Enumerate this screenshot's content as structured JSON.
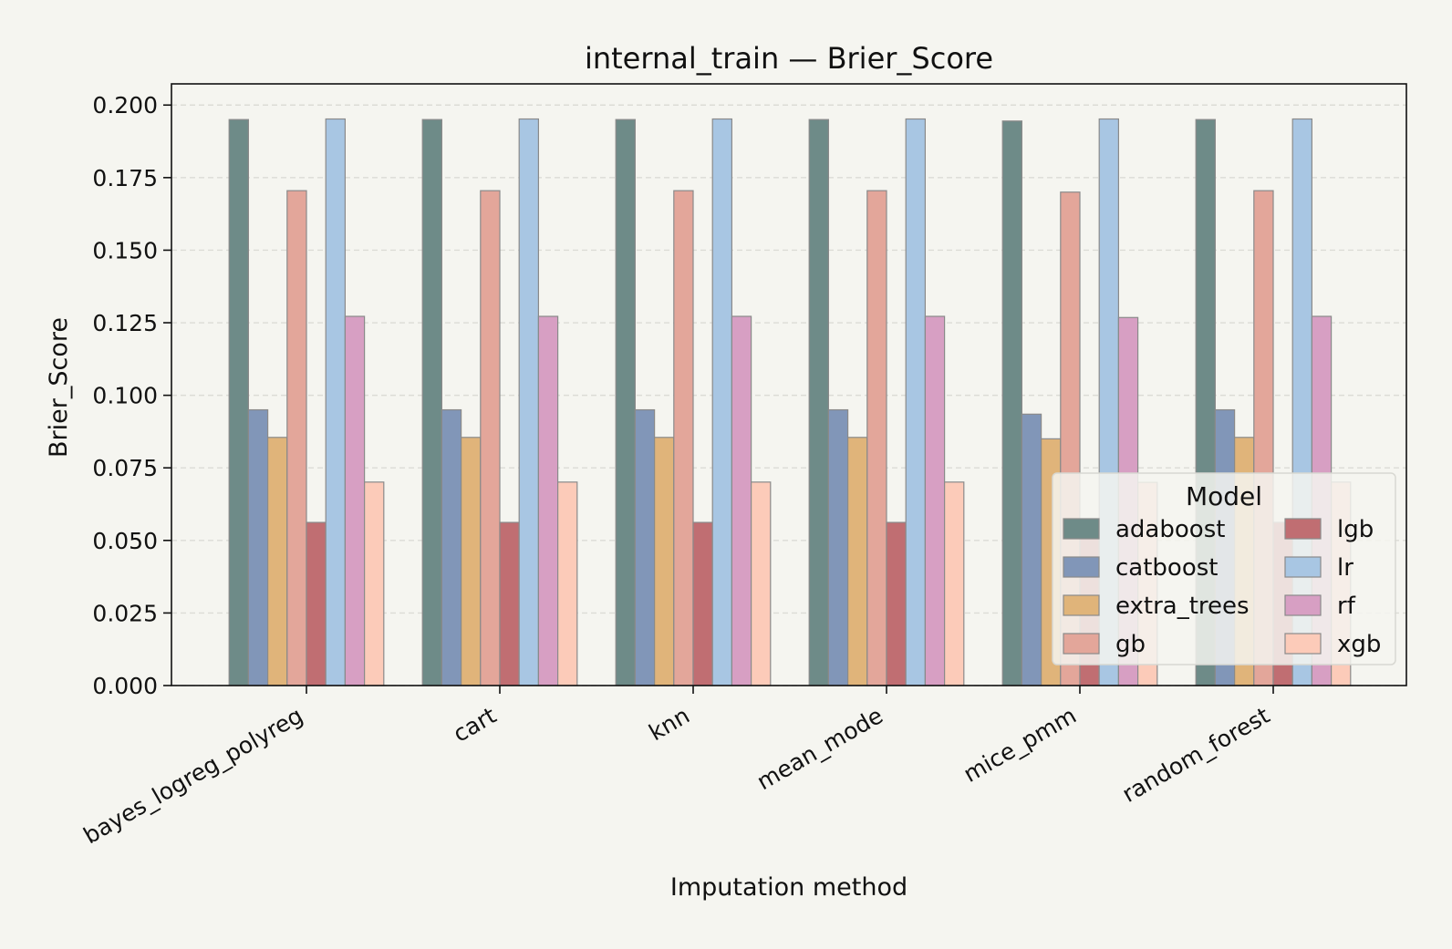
{
  "chart_data": {
    "type": "bar",
    "title": "internal_train — Brier_Score",
    "xlabel": "Imputation method",
    "ylabel": "Brier_Score",
    "ylim": [
      0,
      0.2
    ],
    "yticks": [
      "0.000",
      "0.025",
      "0.050",
      "0.075",
      "0.100",
      "0.125",
      "0.150",
      "0.175",
      "0.200"
    ],
    "grid": "horizontal dashed",
    "categories": [
      "bayes_logreg_polyreg",
      "cart",
      "knn",
      "mean_mode",
      "mice_pmm",
      "random_forest"
    ],
    "series": [
      {
        "name": "adaboost",
        "color": "#6e8b88",
        "values": [
          0.195,
          0.195,
          0.195,
          0.195,
          0.1945,
          0.195
        ]
      },
      {
        "name": "catboost",
        "color": "#8196b8",
        "values": [
          0.095,
          0.095,
          0.095,
          0.095,
          0.0935,
          0.095
        ]
      },
      {
        "name": "extra_trees",
        "color": "#e0b47a",
        "values": [
          0.0855,
          0.0855,
          0.0855,
          0.0855,
          0.085,
          0.0855
        ]
      },
      {
        "name": "gb",
        "color": "#e3a69a",
        "values": [
          0.1705,
          0.1705,
          0.1705,
          0.1705,
          0.17,
          0.1705
        ]
      },
      {
        "name": "lgb",
        "color": "#c06e72",
        "values": [
          0.0562,
          0.0562,
          0.0562,
          0.0562,
          0.056,
          0.0562
        ]
      },
      {
        "name": "lr",
        "color": "#a8c6e3",
        "values": [
          0.1952,
          0.1952,
          0.1952,
          0.1952,
          0.1952,
          0.1952
        ]
      },
      {
        "name": "rf",
        "color": "#d79fc3",
        "values": [
          0.1272,
          0.1272,
          0.1272,
          0.1272,
          0.1268,
          0.1272
        ]
      },
      {
        "name": "xgb",
        "color": "#fccbb9",
        "values": [
          0.0701,
          0.0701,
          0.0701,
          0.0701,
          0.07,
          0.0701
        ]
      }
    ],
    "legend": {
      "title": "Model",
      "placement": "lower-right",
      "columns": 2
    }
  }
}
